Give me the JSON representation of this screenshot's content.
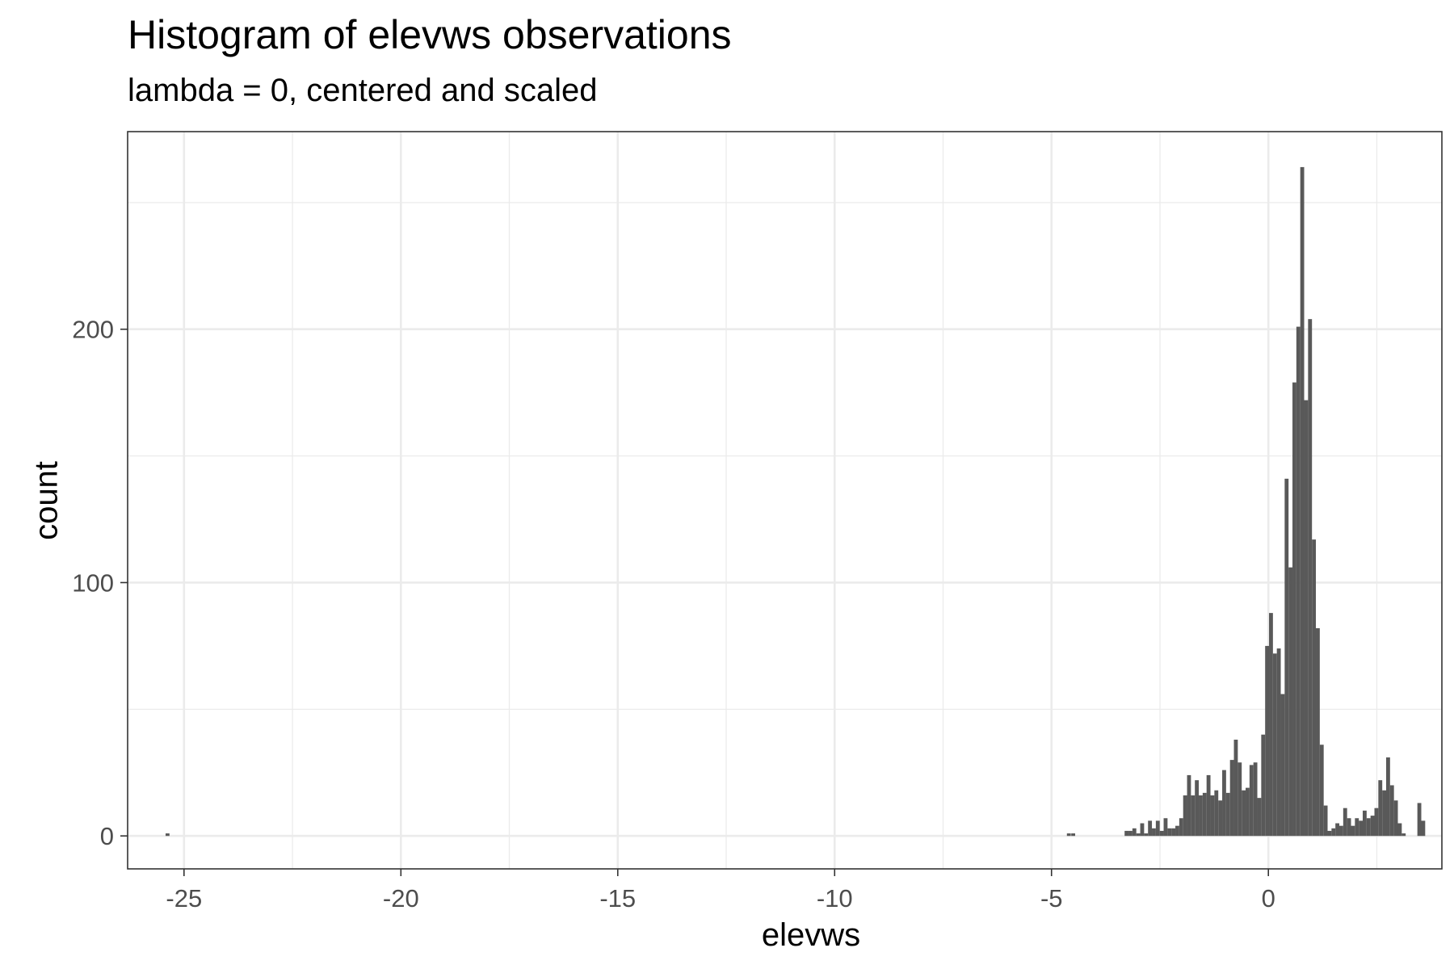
{
  "chart_data": {
    "type": "bar",
    "title": "Histogram of elevws observations",
    "subtitle": "lambda = 0, centered and scaled",
    "xlabel": "elevws",
    "ylabel": "count",
    "xlim": [
      -26.3,
      4.0
    ],
    "ylim": [
      -13,
      278
    ],
    "x_ticks": [
      -25,
      -20,
      -15,
      -10,
      -5,
      0
    ],
    "y_ticks": [
      0,
      100,
      200
    ],
    "grid": true,
    "bin_width": 0.09,
    "bars_color": "#595959",
    "bins": [
      {
        "x": -25.38,
        "count": 1
      },
      {
        "x": -4.6,
        "count": 1
      },
      {
        "x": -4.5,
        "count": 1
      },
      {
        "x": -3.27,
        "count": 2
      },
      {
        "x": -3.18,
        "count": 2
      },
      {
        "x": -3.09,
        "count": 3
      },
      {
        "x": -3.0,
        "count": 1
      },
      {
        "x": -2.91,
        "count": 5
      },
      {
        "x": -2.82,
        "count": 1
      },
      {
        "x": -2.73,
        "count": 6
      },
      {
        "x": -2.64,
        "count": 3
      },
      {
        "x": -2.55,
        "count": 6
      },
      {
        "x": -2.46,
        "count": 2
      },
      {
        "x": -2.37,
        "count": 7
      },
      {
        "x": -2.28,
        "count": 3
      },
      {
        "x": -2.19,
        "count": 3
      },
      {
        "x": -2.1,
        "count": 4
      },
      {
        "x": -2.01,
        "count": 7
      },
      {
        "x": -1.92,
        "count": 16
      },
      {
        "x": -1.83,
        "count": 24
      },
      {
        "x": -1.74,
        "count": 16
      },
      {
        "x": -1.65,
        "count": 22
      },
      {
        "x": -1.56,
        "count": 16
      },
      {
        "x": -1.47,
        "count": 17
      },
      {
        "x": -1.38,
        "count": 24
      },
      {
        "x": -1.29,
        "count": 16
      },
      {
        "x": -1.2,
        "count": 18
      },
      {
        "x": -1.11,
        "count": 14
      },
      {
        "x": -1.02,
        "count": 26
      },
      {
        "x": -0.93,
        "count": 17
      },
      {
        "x": -0.84,
        "count": 30
      },
      {
        "x": -0.75,
        "count": 38
      },
      {
        "x": -0.66,
        "count": 29
      },
      {
        "x": -0.57,
        "count": 18
      },
      {
        "x": -0.48,
        "count": 19
      },
      {
        "x": -0.39,
        "count": 28
      },
      {
        "x": -0.3,
        "count": 29
      },
      {
        "x": -0.21,
        "count": 15
      },
      {
        "x": -0.12,
        "count": 40
      },
      {
        "x": -0.03,
        "count": 75
      },
      {
        "x": 0.06,
        "count": 88
      },
      {
        "x": 0.15,
        "count": 72
      },
      {
        "x": 0.24,
        "count": 74
      },
      {
        "x": 0.33,
        "count": 56
      },
      {
        "x": 0.42,
        "count": 141
      },
      {
        "x": 0.51,
        "count": 106
      },
      {
        "x": 0.6,
        "count": 179
      },
      {
        "x": 0.69,
        "count": 201
      },
      {
        "x": 0.78,
        "count": 264
      },
      {
        "x": 0.87,
        "count": 172
      },
      {
        "x": 0.96,
        "count": 204
      },
      {
        "x": 1.05,
        "count": 117
      },
      {
        "x": 1.14,
        "count": 82
      },
      {
        "x": 1.23,
        "count": 36
      },
      {
        "x": 1.32,
        "count": 12
      },
      {
        "x": 1.41,
        "count": 2
      },
      {
        "x": 1.5,
        "count": 3
      },
      {
        "x": 1.59,
        "count": 5
      },
      {
        "x": 1.68,
        "count": 4
      },
      {
        "x": 1.77,
        "count": 11
      },
      {
        "x": 1.86,
        "count": 7
      },
      {
        "x": 1.95,
        "count": 4
      },
      {
        "x": 2.04,
        "count": 7
      },
      {
        "x": 2.13,
        "count": 6
      },
      {
        "x": 2.22,
        "count": 10
      },
      {
        "x": 2.31,
        "count": 7
      },
      {
        "x": 2.4,
        "count": 8
      },
      {
        "x": 2.49,
        "count": 11
      },
      {
        "x": 2.58,
        "count": 22
      },
      {
        "x": 2.67,
        "count": 18
      },
      {
        "x": 2.76,
        "count": 31
      },
      {
        "x": 2.85,
        "count": 20
      },
      {
        "x": 2.94,
        "count": 14
      },
      {
        "x": 3.03,
        "count": 5
      },
      {
        "x": 3.12,
        "count": 1
      },
      {
        "x": 3.48,
        "count": 13
      },
      {
        "x": 3.57,
        "count": 6
      }
    ]
  }
}
